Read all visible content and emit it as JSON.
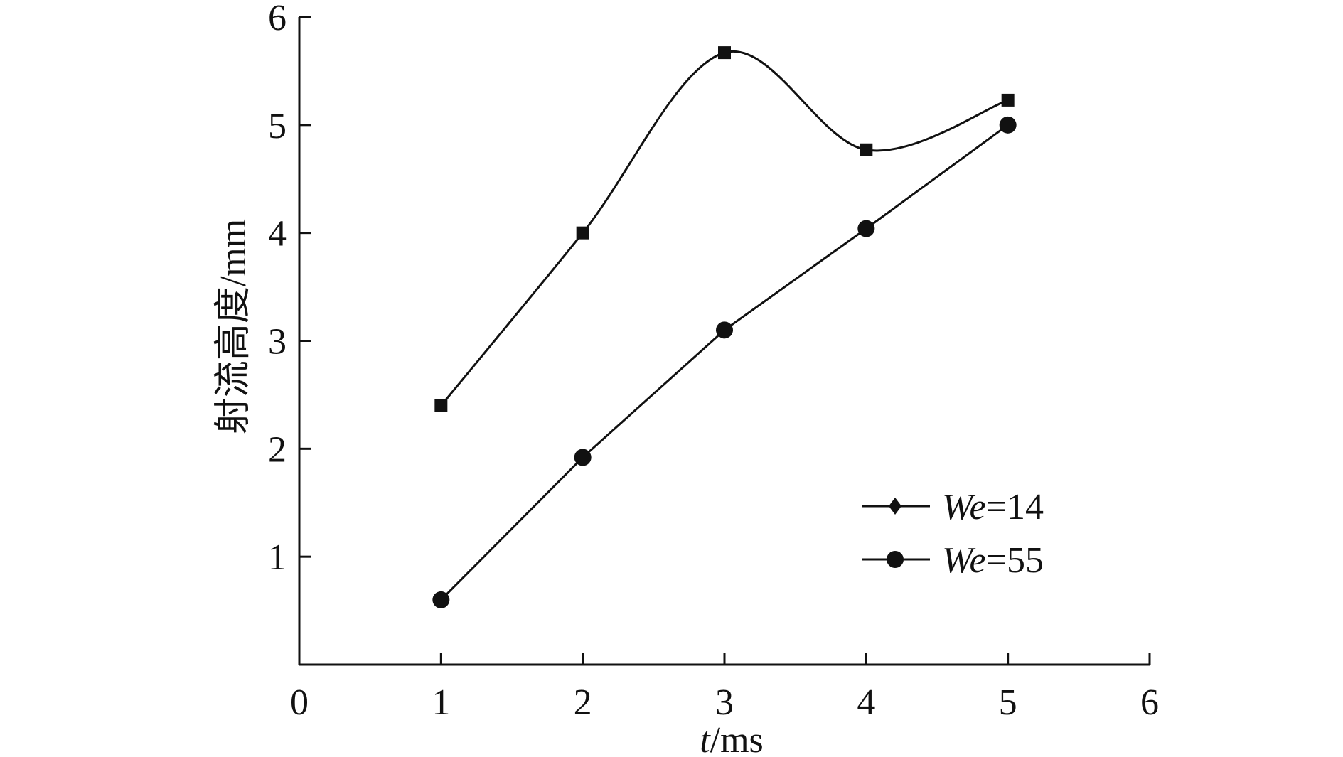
{
  "chart_data": {
    "type": "line",
    "title": "",
    "xlabel_italic": "t",
    "xlabel_rest": "/ms",
    "ylabel": "射流高度/mm",
    "xlim": [
      0,
      6
    ],
    "ylim": [
      0,
      6
    ],
    "xticks": [
      "0",
      "1",
      "2",
      "3",
      "4",
      "5",
      "6"
    ],
    "yticks": [
      "1",
      "2",
      "3",
      "4",
      "5",
      "6"
    ],
    "grid": false,
    "legend_position": "lower-right",
    "series": [
      {
        "name_italic": "We",
        "name_rest": "=14",
        "marker": "square",
        "legend_marker": "diamond",
        "smooth": true,
        "x": [
          1,
          2,
          3,
          4,
          5
        ],
        "y": [
          2.4,
          4.0,
          5.67,
          4.77,
          5.23
        ]
      },
      {
        "name_italic": "We",
        "name_rest": "=55",
        "marker": "circle",
        "legend_marker": "circle",
        "smooth": false,
        "x": [
          1,
          2,
          3,
          4,
          5
        ],
        "y": [
          0.6,
          1.92,
          3.1,
          4.04,
          5.0
        ]
      }
    ],
    "colors": {
      "line": "#111111",
      "marker": "#111111",
      "axis": "#111111"
    }
  }
}
